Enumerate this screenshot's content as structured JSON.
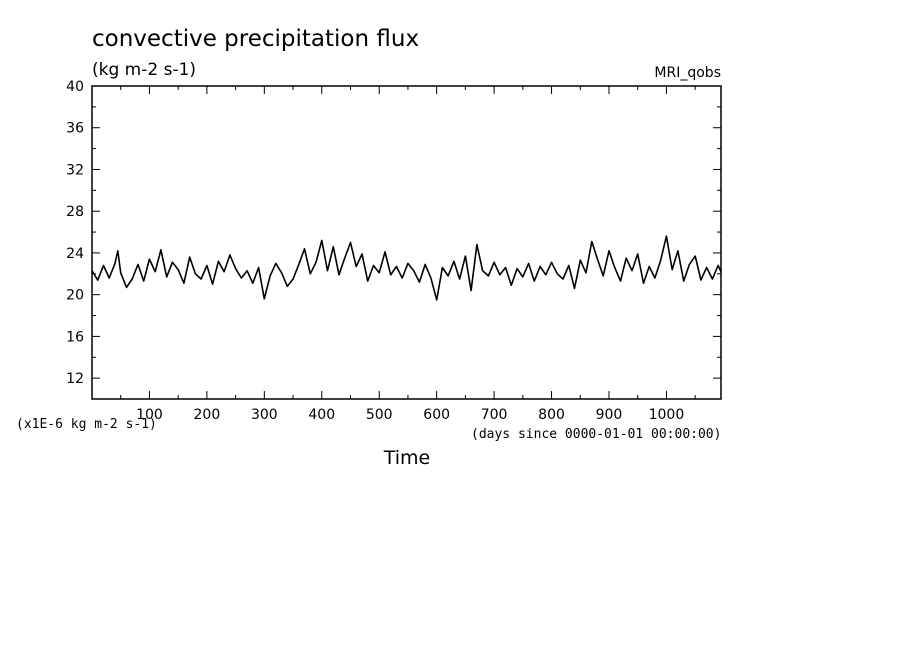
{
  "chart_data": {
    "type": "line",
    "title": "convective precipitation flux",
    "subtitle": "(kg m-2 s-1)",
    "model_label": "MRI_qobs",
    "xlabel": "Time",
    "x_units": "(days since 0000-01-01 00:00:00)",
    "y_scale_note": "(x1E-6 kg m-2 s-1)",
    "xlim": [
      0,
      1095
    ],
    "ylim": [
      10,
      40
    ],
    "x_ticks": [
      100,
      200,
      300,
      400,
      500,
      600,
      700,
      800,
      900,
      1000
    ],
    "y_ticks": [
      12,
      16,
      20,
      24,
      28,
      32,
      36,
      40
    ],
    "grid": false,
    "colors": {
      "line": "#000000",
      "background": "#ffffff"
    },
    "series": [
      {
        "x": [
          0,
          10,
          20,
          30,
          40,
          45,
          50,
          60,
          70,
          80,
          90,
          100,
          110,
          120,
          130,
          140,
          150,
          160,
          170,
          180,
          190,
          200,
          210,
          220,
          230,
          240,
          250,
          260,
          270,
          280,
          290,
          300,
          310,
          320,
          330,
          340,
          350,
          360,
          370,
          380,
          390,
          400,
          410,
          420,
          430,
          440,
          450,
          460,
          470,
          480,
          490,
          500,
          510,
          520,
          530,
          540,
          550,
          560,
          570,
          580,
          590,
          600,
          610,
          620,
          630,
          640,
          650,
          660,
          670,
          680,
          690,
          700,
          710,
          720,
          730,
          740,
          750,
          760,
          770,
          780,
          790,
          800,
          810,
          820,
          830,
          840,
          850,
          860,
          870,
          880,
          890,
          900,
          910,
          920,
          930,
          940,
          950,
          960,
          970,
          980,
          990,
          1000,
          1010,
          1020,
          1030,
          1040,
          1050,
          1060,
          1070,
          1080,
          1090,
          1095
        ],
        "y": [
          22.3,
          21.4,
          22.8,
          21.6,
          23.0,
          24.2,
          22.1,
          20.7,
          21.5,
          22.9,
          21.3,
          23.4,
          22.2,
          24.3,
          21.7,
          23.1,
          22.4,
          21.1,
          23.6,
          22.0,
          21.5,
          22.8,
          21.0,
          23.2,
          22.2,
          23.8,
          22.5,
          21.6,
          22.3,
          21.1,
          22.6,
          19.6,
          21.8,
          23.0,
          22.1,
          20.8,
          21.5,
          22.9,
          24.4,
          22.0,
          23.1,
          25.2,
          22.3,
          24.6,
          21.9,
          23.5,
          25.0,
          22.7,
          23.9,
          21.3,
          22.8,
          22.1,
          24.1,
          21.9,
          22.7,
          21.6,
          23.0,
          22.3,
          21.2,
          22.9,
          21.6,
          19.5,
          22.6,
          21.8,
          23.2,
          21.5,
          23.7,
          20.4,
          24.8,
          22.3,
          21.8,
          23.1,
          21.9,
          22.6,
          20.9,
          22.5,
          21.7,
          23.0,
          21.3,
          22.7,
          21.9,
          23.1,
          22.0,
          21.5,
          22.8,
          20.6,
          23.3,
          22.1,
          25.1,
          23.4,
          21.8,
          24.2,
          22.6,
          21.3,
          23.5,
          22.3,
          23.9,
          21.1,
          22.7,
          21.6,
          23.3,
          25.6,
          22.4,
          24.2,
          21.3,
          22.9,
          23.7,
          21.4,
          22.6,
          21.5,
          22.8,
          22.2
        ]
      }
    ]
  }
}
